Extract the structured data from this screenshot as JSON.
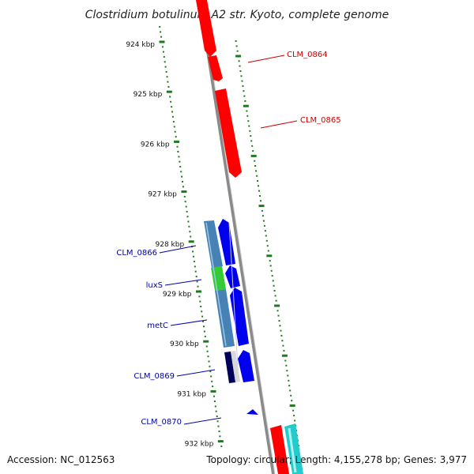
{
  "title": "Clostridium botulinum A2 str. Kyoto, complete genome",
  "footer": {
    "accession": "Accession: NC_012563",
    "summary": "Topology: circular; Length: 4,155,278 bp; Genes: 3,977"
  },
  "colors": {
    "backbone": "#8a8a8a",
    "tick": "#1e7a1e",
    "red_gene": "#ff0000",
    "blue_gene": "#0000ee",
    "steel_gene": "#4682b4",
    "green_gene": "#33cc33",
    "navy_gene": "#00005a",
    "cyan_gene": "#22cccc",
    "red_label": "#cc0000",
    "blue_label": "#0000aa"
  },
  "scale": {
    "ticks": [
      {
        "label": "924 kbp",
        "kbp": 924
      },
      {
        "label": "925 kbp",
        "kbp": 925
      },
      {
        "label": "926 kbp",
        "kbp": 926
      },
      {
        "label": "927 kbp",
        "kbp": 927
      },
      {
        "label": "928 kbp",
        "kbp": 928
      },
      {
        "label": "929 kbp",
        "kbp": 929
      },
      {
        "label": "930 kbp",
        "kbp": 930
      },
      {
        "label": "931 kbp",
        "kbp": 931
      },
      {
        "label": "932 kbp",
        "kbp": 932
      }
    ]
  },
  "genes": [
    {
      "label": "CLM_0864",
      "strand": "+",
      "color": "red_gene"
    },
    {
      "label": "CLM_0865",
      "strand": "+",
      "color": "red_gene"
    },
    {
      "label": "CLM_0866",
      "strand": "-",
      "color": "blue_gene"
    },
    {
      "label": "luxS",
      "strand": "-",
      "color": "blue_gene"
    },
    {
      "label": "metC",
      "strand": "-",
      "color": "blue_gene"
    },
    {
      "label": "CLM_0869",
      "strand": "-",
      "color": "blue_gene"
    },
    {
      "label": "CLM_0870",
      "strand": "-",
      "color": "blue_gene"
    }
  ]
}
